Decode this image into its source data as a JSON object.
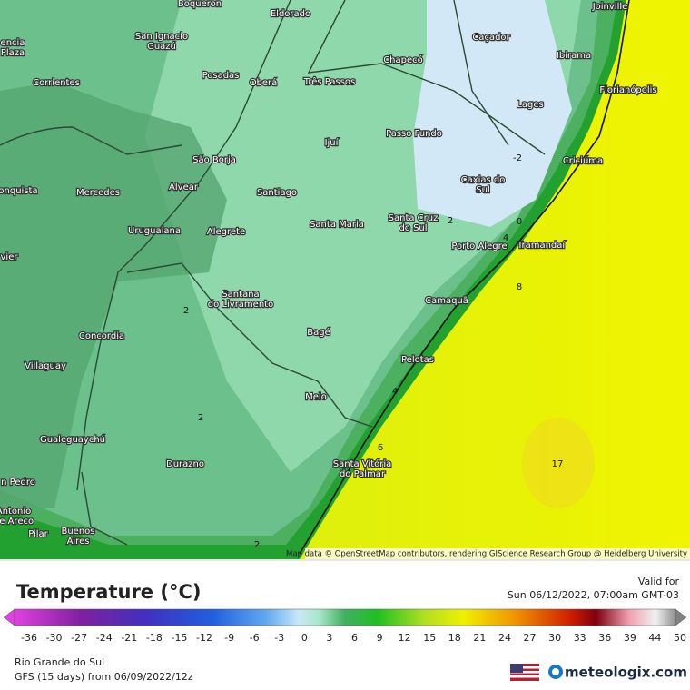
{
  "map": {
    "cities": [
      [
        "Boqueron"
      ],
      [
        "Eldorado"
      ],
      [
        "Joinville"
      ],
      [
        "encia",
        "Plaza"
      ],
      [
        "San Ignacio",
        "Guazú"
      ],
      [
        "Caçador"
      ],
      [
        "Chapecó"
      ],
      [
        "Ibirama"
      ],
      [
        "Posadas"
      ],
      [
        "Oberá"
      ],
      [
        "Três Passos"
      ],
      [
        "Corrientes"
      ],
      [
        "Florianópolis"
      ],
      [
        "Lages"
      ],
      [
        "Passo Fundo"
      ],
      [
        "Ijuí"
      ],
      [
        "São Borja"
      ],
      [
        "Criciúma"
      ],
      [
        "Caxias do",
        "Sul"
      ],
      [
        "Alvear"
      ],
      [
        "Santiago"
      ],
      [
        "Mercedes"
      ],
      [
        "onquista"
      ],
      [
        "Santa Cruz",
        "do Sul"
      ],
      [
        "Santa Maria"
      ],
      [
        "Uruguaiana"
      ],
      [
        "Alegrete"
      ],
      [
        "Porto Alegre"
      ],
      [
        "Tramandaí"
      ],
      [
        "vier"
      ],
      [
        "Santana",
        "do Livramento"
      ],
      [
        "Camaquã"
      ],
      [
        "Concordia"
      ],
      [
        "Bagé"
      ],
      [
        "Villaguay"
      ],
      [
        "Pelotas"
      ],
      [
        "Melo"
      ],
      [
        "Gualeguaychú"
      ],
      [
        "Santa Vitória",
        "do Palmar"
      ],
      [
        "Durazno"
      ],
      [
        "n Pedro"
      ],
      [
        "Antonio",
        "de Areco"
      ],
      [
        "Pilar"
      ],
      [
        "Buenos",
        "Aires"
      ]
    ],
    "contour_labels": [
      -2,
      0,
      2,
      4,
      8,
      4,
      6,
      2,
      2,
      2,
      17
    ],
    "attribution": "Map data © OpenStreetMap contributors, rendering GIScience Research Group @ Heidelberg University"
  },
  "legend": {
    "title": "Temperature (°C)",
    "valid_label": "Valid for",
    "valid_time": "Sun 06/12/2022, 07:00am GMT-03",
    "scale_ticks": [
      -36,
      -30,
      -27,
      -24,
      -21,
      -18,
      -15,
      -12,
      -9,
      -6,
      -3,
      0,
      3,
      6,
      9,
      12,
      15,
      18,
      21,
      24,
      27,
      30,
      33,
      36,
      39,
      44,
      50
    ]
  },
  "footer": {
    "region": "Rio Grande do Sul",
    "model": "GFS (15 days) from 06/09/2022/12z",
    "brand": "meteologix.com"
  }
}
